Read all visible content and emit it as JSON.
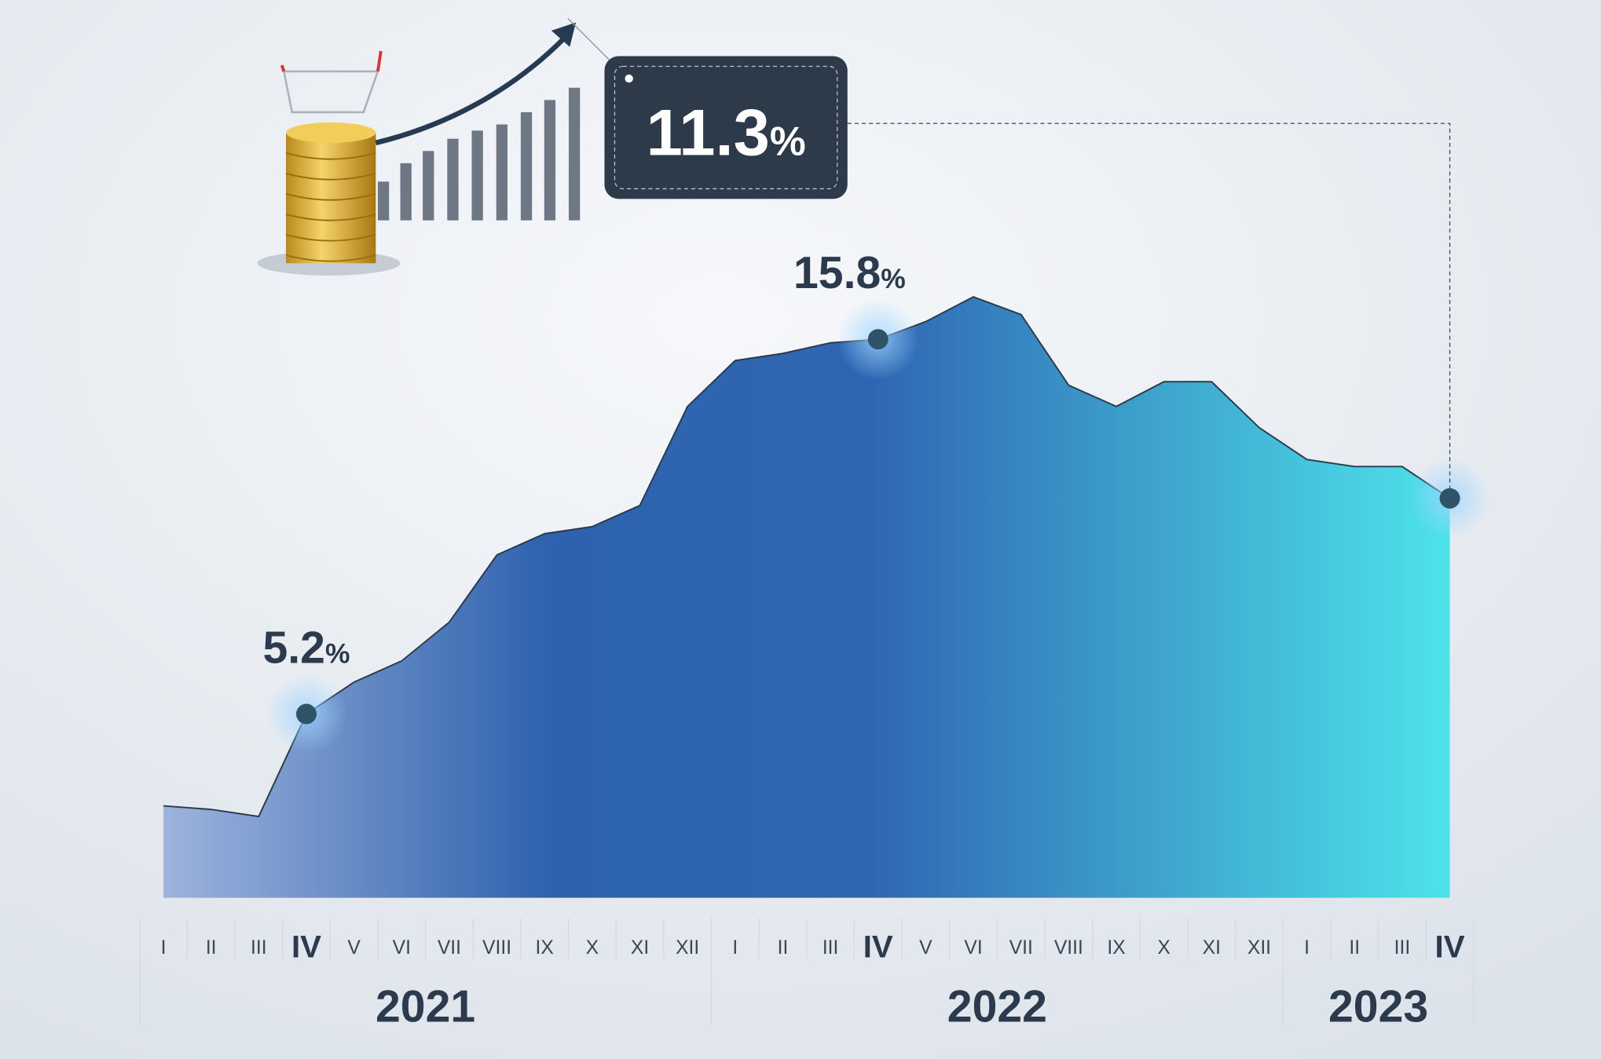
{
  "chart_data": {
    "type": "area",
    "groups": [
      {
        "label": "2021",
        "categories": [
          "I",
          "II",
          "III",
          "IV",
          "V",
          "VI",
          "VII",
          "VIII",
          "IX",
          "X",
          "XI",
          "XII"
        ]
      },
      {
        "label": "2022",
        "categories": [
          "I",
          "II",
          "III",
          "IV",
          "V",
          "VI",
          "VII",
          "VIII",
          "IX",
          "X",
          "XI",
          "XII"
        ]
      },
      {
        "label": "2023",
        "categories": [
          "I",
          "II",
          "III",
          "IV"
        ]
      }
    ],
    "values": [
      2.6,
      2.5,
      2.3,
      5.2,
      6.1,
      6.7,
      7.8,
      9.7,
      10.3,
      10.5,
      11.1,
      13.9,
      15.2,
      15.4,
      15.7,
      15.8,
      16.3,
      17.0,
      16.5,
      14.5,
      13.9,
      14.6,
      14.6,
      13.3,
      12.4,
      12.2,
      12.2,
      11.3
    ],
    "value_labels": [
      null,
      null,
      null,
      "5.2%",
      null,
      null,
      null,
      null,
      null,
      null,
      null,
      null,
      null,
      null,
      null,
      "15.8%",
      null,
      null,
      null,
      null,
      null,
      null,
      null,
      null,
      null,
      null,
      null,
      "11.3%"
    ],
    "colors": [
      "#9db3dc",
      "#2e62ae",
      "#2f66b2",
      "#4de3ea"
    ]
  }
}
